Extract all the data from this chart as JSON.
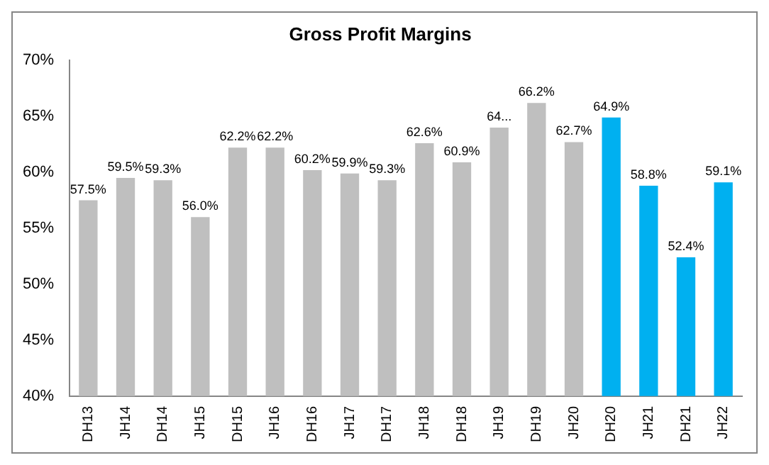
{
  "chart_data": {
    "type": "bar",
    "title": "Gross Profit Margins",
    "categories": [
      "DH13",
      "JH14",
      "DH14",
      "JH15",
      "DH15",
      "JH16",
      "DH16",
      "JH17",
      "DH17",
      "JH18",
      "DH18",
      "JH19",
      "DH19",
      "JH20",
      "DH20",
      "JH21",
      "DH21",
      "JH22"
    ],
    "values": [
      57.5,
      59.5,
      59.3,
      56.0,
      62.2,
      62.2,
      60.2,
      59.9,
      59.3,
      62.6,
      60.9,
      64.0,
      66.2,
      62.7,
      64.9,
      58.8,
      52.4,
      59.1
    ],
    "colors": [
      "#bfbfbf",
      "#bfbfbf",
      "#bfbfbf",
      "#bfbfbf",
      "#bfbfbf",
      "#bfbfbf",
      "#bfbfbf",
      "#bfbfbf",
      "#bfbfbf",
      "#bfbfbf",
      "#bfbfbf",
      "#bfbfbf",
      "#bfbfbf",
      "#bfbfbf",
      "#00b0f0",
      "#00b0f0",
      "#00b0f0",
      "#00b0f0"
    ],
    "value_labels": [
      "57.5%",
      "59.5%",
      "59.3%",
      "56.0%",
      "62.2%",
      "62.2%",
      "60.2%",
      "59.9%",
      "59.3%",
      "62.6%",
      "60.9%",
      "64...",
      "66.2%",
      "62.7%",
      "64.9%",
      "58.8%",
      "52.4%",
      "59.1%"
    ],
    "ylim": [
      40,
      70
    ],
    "yticks": [
      {
        "value": 40,
        "label": "40%"
      },
      {
        "value": 45,
        "label": "45%"
      },
      {
        "value": 50,
        "label": "50%"
      },
      {
        "value": 55,
        "label": "55%"
      },
      {
        "value": 60,
        "label": "60%"
      },
      {
        "value": 65,
        "label": "65%"
      },
      {
        "value": 70,
        "label": "70%"
      }
    ],
    "grid": false,
    "legend": false
  }
}
